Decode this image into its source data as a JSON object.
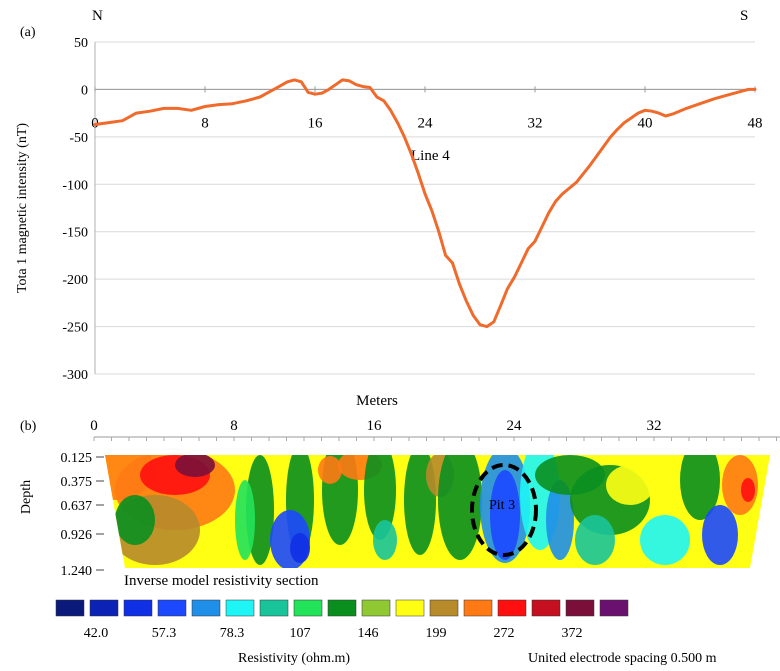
{
  "chart_data": [
    {
      "panel_label": "(a)",
      "type": "line",
      "direction_left": "N",
      "direction_right": "S",
      "ylabel": "Tota 1 magnetic intensity (nT)",
      "xlabel": "Meters",
      "annotation": "Line 4",
      "ylim": [
        -300,
        50
      ],
      "xlim": [
        0,
        48
      ],
      "yticks": [
        50,
        0,
        -50,
        -100,
        -150,
        -200,
        -250,
        -300
      ],
      "xticks": [
        0,
        8,
        16,
        24,
        32,
        40,
        48
      ],
      "grid": "horizontal",
      "colors": {
        "line": "#F06A2B",
        "grid": "#d9d9d9"
      },
      "series": [
        {
          "x": [
            0,
            1,
            2,
            3,
            4,
            5,
            6,
            7,
            8,
            9,
            10,
            11,
            12,
            13,
            14,
            14.5,
            15,
            15.5,
            16,
            16.5,
            17,
            17.5,
            18,
            18.5,
            19,
            19.5,
            20,
            20.5,
            21,
            21.5,
            22,
            22.5,
            23,
            23.5,
            24,
            24.5,
            25,
            25.5,
            26,
            26.5,
            27,
            27.5,
            28,
            28.5,
            29,
            29.5,
            30,
            30.5,
            31,
            31.5,
            32,
            32.5,
            33,
            33.5,
            34,
            35,
            36,
            36.5,
            37,
            37.5,
            38,
            38.5,
            39,
            39.5,
            40,
            40.5,
            41,
            41.5,
            42,
            43,
            44,
            45,
            46,
            47,
            47.5,
            48
          ],
          "y": [
            -37,
            -35,
            -33,
            -25,
            -23,
            -20,
            -20,
            -22,
            -18,
            -16,
            -15,
            -12,
            -8,
            0,
            8,
            10,
            8,
            -3,
            -5,
            -4,
            0,
            5,
            10,
            9,
            5,
            3,
            2,
            -8,
            -12,
            -22,
            -35,
            -50,
            -68,
            -88,
            -110,
            -128,
            -150,
            -175,
            -183,
            -205,
            -223,
            -238,
            -248,
            -250,
            -245,
            -228,
            -210,
            -198,
            -183,
            -168,
            -160,
            -145,
            -130,
            -118,
            -110,
            -98,
            -80,
            -70,
            -60,
            -50,
            -42,
            -35,
            -30,
            -25,
            -22,
            -23,
            -25,
            -28,
            -26,
            -20,
            -15,
            -10,
            -6,
            -2,
            0,
            0
          ]
        }
      ]
    },
    {
      "panel_label": "(b)",
      "type": "heatmap",
      "xticks": [
        0,
        8,
        16,
        24,
        32
      ],
      "ylabel": "Depth",
      "depth_levels": [
        "0.125",
        "0.375",
        "0.637",
        "0.926",
        "1.240"
      ],
      "section_title": "Inverse model resistivity section",
      "annotation": "Pit 3",
      "scale_title": "Resistivity (ohm.m)",
      "footnote": "United electrode spacing 0.500 m",
      "scale_labels": [
        "42.0",
        "57.3",
        "78.3",
        "107",
        "146",
        "199",
        "272",
        "372"
      ],
      "scale_colors": [
        "#0b1a7a",
        "#0b22b4",
        "#1030e6",
        "#1c48ff",
        "#1f8fe8",
        "#1ff5f5",
        "#19c49a",
        "#22e35a",
        "#0a8f1f",
        "#8fc832",
        "#ffff14",
        "#b78a2a",
        "#ff7a14",
        "#ff1010",
        "#c41020",
        "#7a0f3a",
        "#6a1170"
      ]
    }
  ]
}
